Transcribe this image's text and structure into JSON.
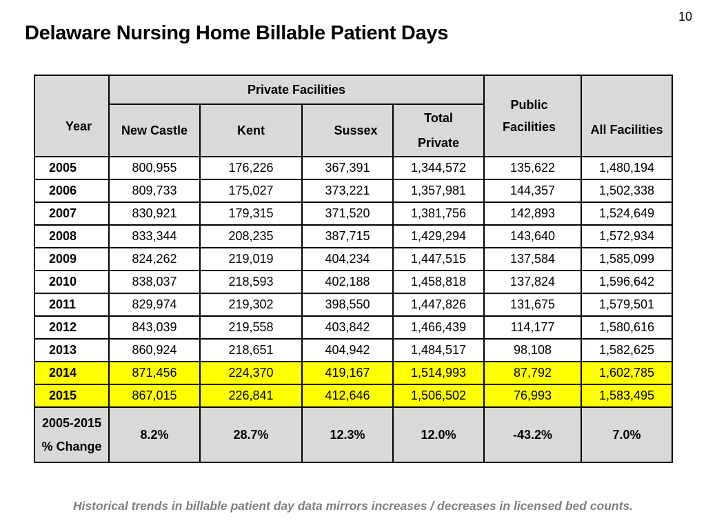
{
  "page_number": "10",
  "title": "Delaware Nursing Home Billable Patient Days",
  "headers": {
    "year": "Year",
    "private_group": "Private Facilities",
    "new_castle": "New Castle",
    "kent": "Kent",
    "sussex": "Sussex",
    "total_private_line1": "Total",
    "total_private_line2": "Private",
    "public_line1": "Public",
    "public_line2": "Facilities",
    "all": "All Facilities"
  },
  "rows": [
    {
      "year": "2005",
      "new_castle": "800,955",
      "kent": "176,226",
      "sussex": "367,391",
      "total_private": "1,344,572",
      "public": "135,622",
      "all": "1,480,194"
    },
    {
      "year": "2006",
      "new_castle": "809,733",
      "kent": "175,027",
      "sussex": "373,221",
      "total_private": "1,357,981",
      "public": "144,357",
      "all": "1,502,338"
    },
    {
      "year": "2007",
      "new_castle": "830,921",
      "kent": "179,315",
      "sussex": "371,520",
      "total_private": "1,381,756",
      "public": "142,893",
      "all": "1,524,649"
    },
    {
      "year": "2008",
      "new_castle": "833,344",
      "kent": "208,235",
      "sussex": "387,715",
      "total_private": "1,429,294",
      "public": "143,640",
      "all": "1,572,934"
    },
    {
      "year": "2009",
      "new_castle": "824,262",
      "kent": "219,019",
      "sussex": "404,234",
      "total_private": "1,447,515",
      "public": "137,584",
      "all": "1,585,099"
    },
    {
      "year": "2010",
      "new_castle": "838,037",
      "kent": "218,593",
      "sussex": "402,188",
      "total_private": "1,458,818",
      "public": "137,824",
      "all": "1,596,642"
    },
    {
      "year": "2011",
      "new_castle": "829,974",
      "kent": "219,302",
      "sussex": "398,550",
      "total_private": "1,447,826",
      "public": "131,675",
      "all": "1,579,501"
    },
    {
      "year": "2012",
      "new_castle": "843,039",
      "kent": "219,558",
      "sussex": "403,842",
      "total_private": "1,466,439",
      "public": "114,177",
      "all": "1,580,616"
    },
    {
      "year": "2013",
      "new_castle": "860,924",
      "kent": "218,651",
      "sussex": "404,942",
      "total_private": "1,484,517",
      "public": "98,108",
      "all": "1,582,625"
    },
    {
      "year": "2014",
      "new_castle": "871,456",
      "kent": "224,370",
      "sussex": "419,167",
      "total_private": "1,514,993",
      "public": "87,792",
      "all": "1,602,785"
    },
    {
      "year": "2015",
      "new_castle": "867,015",
      "kent": "226,841",
      "sussex": "412,646",
      "total_private": "1,506,502",
      "public": "76,993",
      "all": "1,583,495"
    }
  ],
  "change_row": {
    "label_line1": "2005-2015",
    "label_line2": "% Change",
    "new_castle": "8.2%",
    "kent": "28.7%",
    "sussex": "12.3%",
    "total_private": "12.0%",
    "public": "-43.2%",
    "all": "7.0%"
  },
  "highlight_color": "#ffff00",
  "header_fill_color": "#d9d9d9",
  "footnote": "Historical trends in billable patient day data mirrors increases / decreases in licensed bed counts."
}
